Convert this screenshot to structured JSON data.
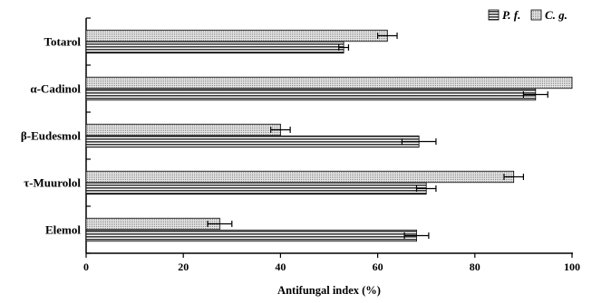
{
  "chart_data": {
    "type": "bar",
    "orientation": "horizontal",
    "categories": [
      "Totarol",
      "α-Cadinol",
      "β-Eudesmol",
      "τ-Muurolol",
      "Elemol"
    ],
    "series": [
      {
        "name": "C. g.",
        "values": [
          62,
          100,
          40,
          88,
          27.5
        ],
        "errors": [
          2,
          0,
          2,
          2,
          2.5
        ],
        "color": "#c8c8c8",
        "pattern": "dotted"
      },
      {
        "name": "P. f.",
        "values": [
          53,
          92.5,
          68.5,
          70,
          68
        ],
        "errors": [
          1,
          2.5,
          3.5,
          2,
          2.5
        ],
        "color": "#5a5a5a",
        "pattern": "horizontal-lines"
      }
    ],
    "legend_order": [
      "P. f.",
      "C. g."
    ],
    "legend_position": "top-right",
    "xlabel": "Antifungal index (%)",
    "ylabel": "",
    "xlim": [
      0,
      100
    ],
    "xticks": [
      0,
      20,
      40,
      60,
      80,
      100
    ],
    "grid": false,
    "title": ""
  }
}
